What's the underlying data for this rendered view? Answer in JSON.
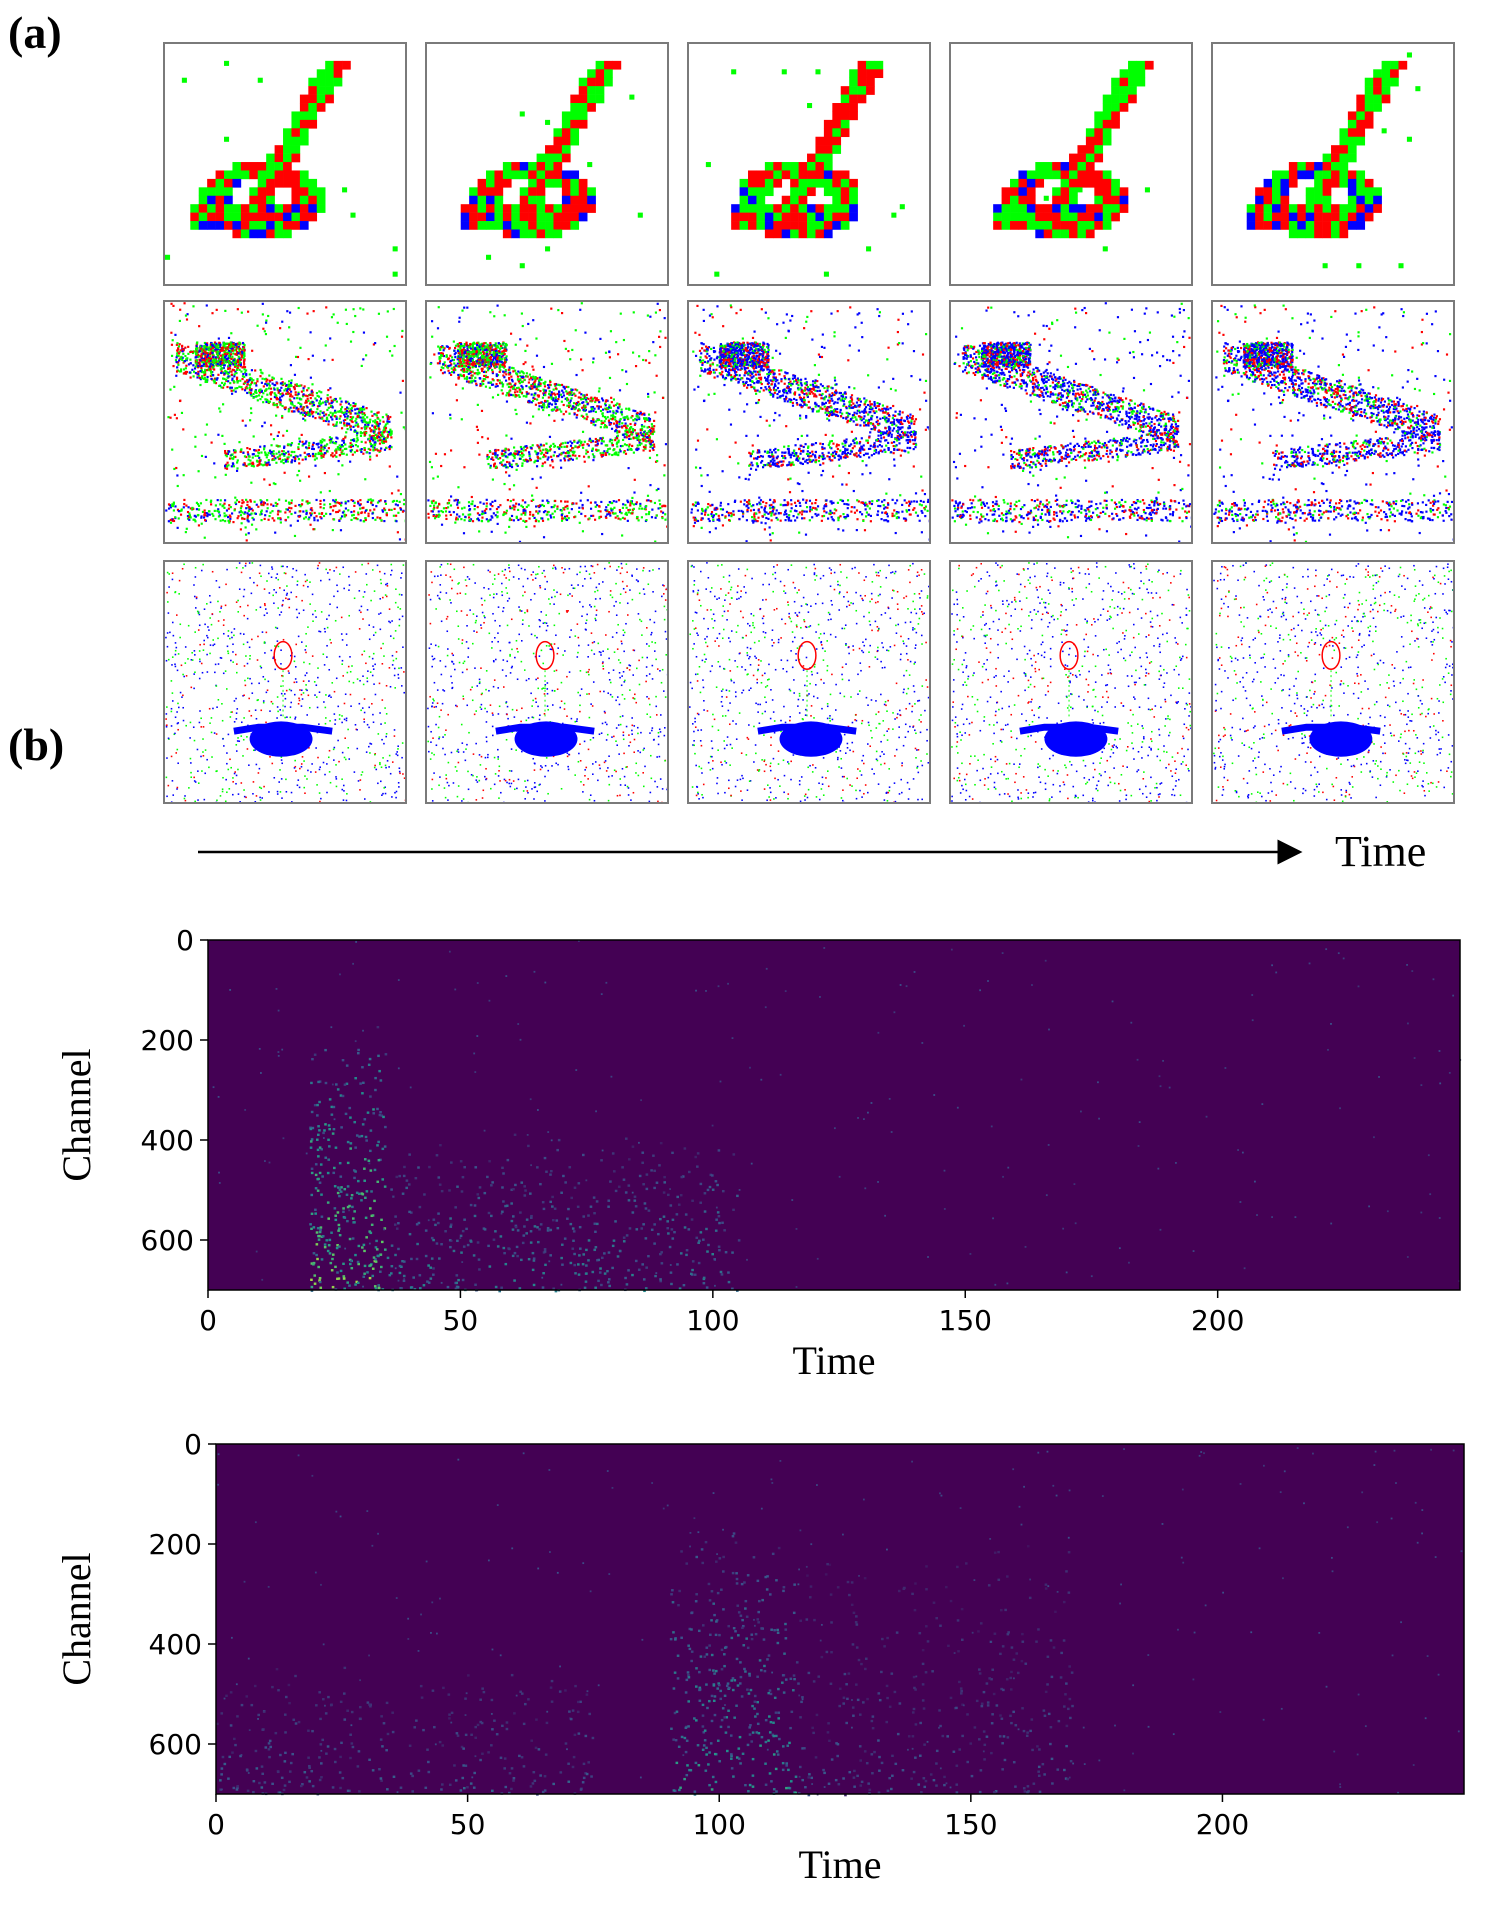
{
  "panel_a": {
    "label": "(a)",
    "time_label": "Time",
    "rows": [
      {
        "name": "digit",
        "frames": 5
      },
      {
        "name": "bird",
        "frames": 5
      },
      {
        "name": "person",
        "frames": 5
      }
    ],
    "colors": {
      "red": "#ff0000",
      "green": "#00ff00",
      "blue": "#0000ff"
    }
  },
  "panel_b": {
    "label": "(b)"
  },
  "chart_data": [
    {
      "type": "heatmap",
      "title": "",
      "xlabel": "Time",
      "ylabel": "Channel",
      "xlim": [
        0,
        248
      ],
      "ylim": [
        700,
        0
      ],
      "xticks": [
        0,
        50,
        100,
        150,
        200
      ],
      "yticks": [
        0,
        200,
        400,
        600
      ],
      "colormap": "viridis",
      "activity": [
        {
          "time_range": [
            20,
            35
          ],
          "channel_range": [
            170,
            700
          ],
          "intensity": 0.9
        },
        {
          "time_range": [
            35,
            105
          ],
          "channel_range": [
            380,
            700
          ],
          "intensity": 0.5
        }
      ]
    },
    {
      "type": "heatmap",
      "title": "",
      "xlabel": "Time",
      "ylabel": "Channel",
      "xlim": [
        0,
        248
      ],
      "ylim": [
        700,
        0
      ],
      "xticks": [
        0,
        50,
        100,
        150,
        200
      ],
      "yticks": [
        0,
        200,
        400,
        600
      ],
      "colormap": "viridis",
      "activity": [
        {
          "time_range": [
            0,
            75
          ],
          "channel_range": [
            430,
            700
          ],
          "intensity": 0.35
        },
        {
          "time_range": [
            90,
            115
          ],
          "channel_range": [
            160,
            700
          ],
          "intensity": 0.6
        },
        {
          "time_range": [
            115,
            170
          ],
          "channel_range": [
            200,
            700
          ],
          "intensity": 0.3
        }
      ]
    }
  ]
}
